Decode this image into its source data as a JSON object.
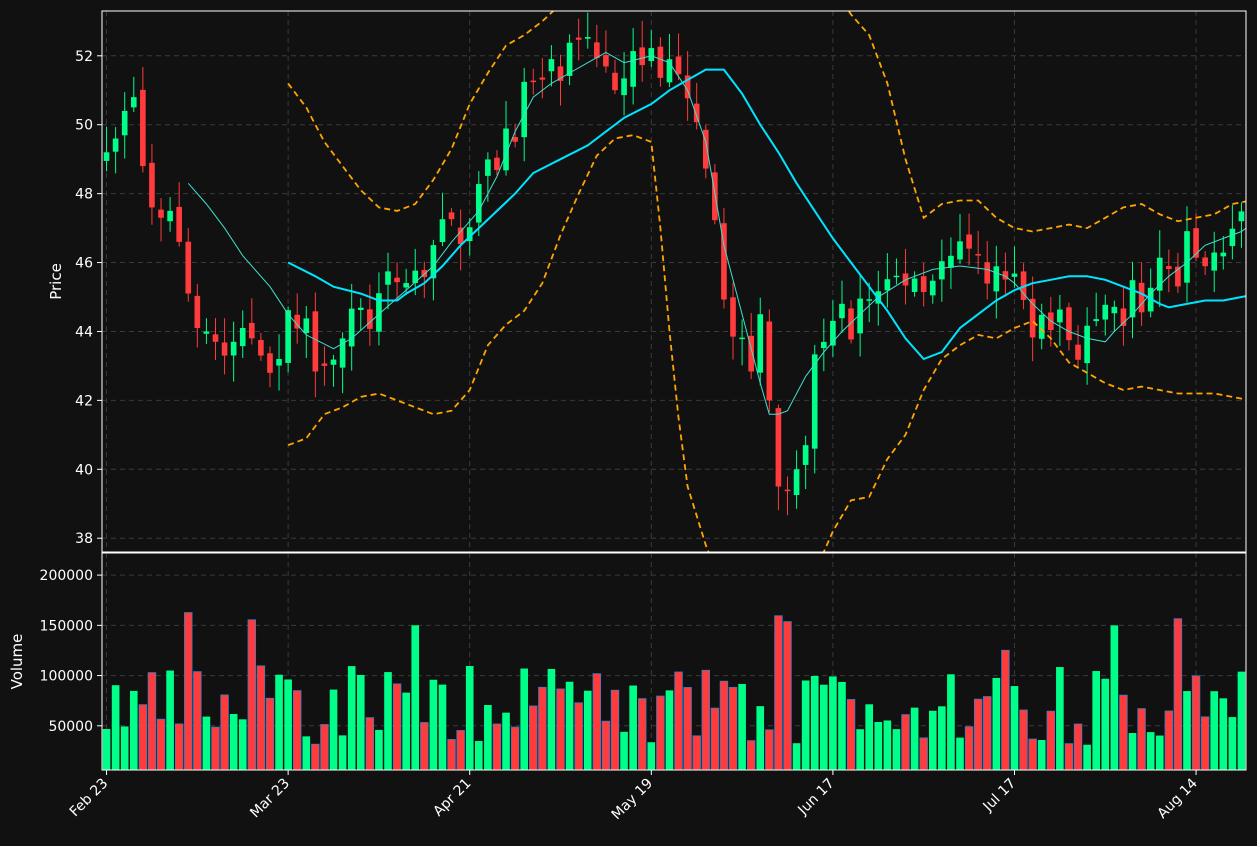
{
  "colors": {
    "background": "#111111",
    "up": "#00ff88",
    "down": "#ff3b3b",
    "down_edge": "#3c7cc4",
    "grid": "#3a3a3a",
    "axis": "#ffffff",
    "ma_short": "#40e0d0",
    "ma_long": "#00e5ff",
    "bollinger": "#ffa500"
  },
  "chart_data": {
    "type": "candlestick",
    "price_axis": {
      "label": "Price",
      "ylim": [
        37.6,
        53.3
      ],
      "ticks": [
        38,
        40,
        42,
        44,
        46,
        48,
        50,
        52
      ],
      "grid": true
    },
    "volume_axis": {
      "label": "Volume",
      "ylim": [
        6000,
        222000
      ],
      "ticks": [
        50000,
        100000,
        150000,
        200000
      ],
      "grid": true
    },
    "x_axis": {
      "tick_labels": [
        "Feb 23",
        "Mar 23",
        "Apr 21",
        "May 19",
        "Jun 17",
        "Jul 17",
        "Aug 14"
      ],
      "tick_index": [
        0,
        20,
        40,
        60,
        80,
        100,
        120
      ],
      "bar_count": 126
    },
    "overlays": [
      {
        "type": "moving_average",
        "style": "thin",
        "color": "cyan-green",
        "knots": [
          [
            9,
            48.3
          ],
          [
            11,
            47.7
          ],
          [
            13,
            47.0
          ],
          [
            14,
            46.6
          ],
          [
            15,
            46.2
          ],
          [
            18,
            45.3
          ],
          [
            20,
            44.5
          ],
          [
            22,
            43.9
          ],
          [
            25,
            43.5
          ],
          [
            27,
            43.8
          ],
          [
            30,
            44.5
          ],
          [
            33,
            45.2
          ],
          [
            36,
            45.9
          ],
          [
            38,
            46.6
          ],
          [
            41,
            47.5
          ],
          [
            43,
            48.5
          ],
          [
            45,
            49.8
          ],
          [
            47,
            50.8
          ],
          [
            49,
            51.2
          ],
          [
            51,
            51.5
          ],
          [
            53,
            51.8
          ],
          [
            55,
            52.1
          ],
          [
            57,
            51.8
          ],
          [
            60,
            52.0
          ],
          [
            62,
            51.8
          ],
          [
            64,
            51.0
          ],
          [
            66,
            49.5
          ],
          [
            67,
            48.0
          ],
          [
            68,
            46.5
          ],
          [
            69,
            45.5
          ],
          [
            70,
            44.5
          ],
          [
            72,
            42.5
          ],
          [
            73,
            41.6
          ],
          [
            74,
            41.6
          ],
          [
            75,
            41.7
          ],
          [
            77,
            42.7
          ],
          [
            79,
            43.4
          ],
          [
            81,
            44.0
          ],
          [
            83,
            44.5
          ],
          [
            85,
            45.0
          ],
          [
            88,
            45.5
          ],
          [
            91,
            45.8
          ],
          [
            94,
            45.9
          ],
          [
            97,
            45.8
          ],
          [
            99,
            45.6
          ],
          [
            100,
            45.4
          ],
          [
            102,
            44.8
          ],
          [
            104,
            44.3
          ],
          [
            106,
            44.0
          ],
          [
            108,
            43.8
          ],
          [
            110,
            43.7
          ],
          [
            111,
            44.0
          ],
          [
            113,
            44.5
          ],
          [
            115,
            45.1
          ],
          [
            117,
            45.6
          ],
          [
            119,
            46.0
          ],
          [
            121,
            46.5
          ],
          [
            123,
            46.7
          ],
          [
            125,
            46.9
          ],
          [
            127,
            47.3
          ],
          [
            129,
            47.6
          ],
          [
            131,
            47.7
          ],
          [
            133,
            47.7
          ],
          [
            135,
            47.9
          ],
          [
            137,
            48.0
          ],
          [
            139,
            47.9
          ],
          [
            141,
            47.7
          ]
        ]
      },
      {
        "type": "moving_average",
        "style": "thick",
        "color": "cyan",
        "knots": [
          [
            20,
            46.0
          ],
          [
            23,
            45.6
          ],
          [
            25,
            45.3
          ],
          [
            28,
            45.1
          ],
          [
            30,
            44.9
          ],
          [
            32,
            44.9
          ],
          [
            33,
            45.1
          ],
          [
            35,
            45.4
          ],
          [
            37,
            45.9
          ],
          [
            39,
            46.5
          ],
          [
            41,
            47.0
          ],
          [
            43,
            47.5
          ],
          [
            45,
            48.0
          ],
          [
            47,
            48.6
          ],
          [
            50,
            49.0
          ],
          [
            53,
            49.4
          ],
          [
            55,
            49.8
          ],
          [
            57,
            50.2
          ],
          [
            60,
            50.6
          ],
          [
            62,
            51.0
          ],
          [
            64,
            51.3
          ],
          [
            66,
            51.6
          ],
          [
            68,
            51.6
          ],
          [
            70,
            50.9
          ],
          [
            72,
            50.0
          ],
          [
            74,
            49.2
          ],
          [
            76,
            48.3
          ],
          [
            78,
            47.5
          ],
          [
            80,
            46.7
          ],
          [
            82,
            46.0
          ],
          [
            84,
            45.3
          ],
          [
            86,
            44.6
          ],
          [
            88,
            43.8
          ],
          [
            90,
            43.2
          ],
          [
            92,
            43.4
          ],
          [
            94,
            44.1
          ],
          [
            96,
            44.5
          ],
          [
            98,
            44.9
          ],
          [
            100,
            45.2
          ],
          [
            102,
            45.4
          ],
          [
            104,
            45.5
          ],
          [
            106,
            45.6
          ],
          [
            108,
            45.6
          ],
          [
            110,
            45.5
          ],
          [
            112,
            45.3
          ],
          [
            114,
            45.1
          ],
          [
            116,
            44.8
          ],
          [
            117,
            44.7
          ],
          [
            119,
            44.8
          ],
          [
            121,
            44.9
          ],
          [
            123,
            44.9
          ],
          [
            125,
            45.0
          ],
          [
            127,
            45.1
          ],
          [
            129,
            45.2
          ],
          [
            131,
            45.5
          ],
          [
            133,
            45.9
          ],
          [
            135,
            46.3
          ],
          [
            137,
            46.7
          ],
          [
            139,
            47.1
          ],
          [
            141,
            47.3
          ],
          [
            143,
            47.5
          ],
          [
            145,
            47.6
          ],
          [
            147,
            47.7
          ]
        ]
      },
      {
        "type": "bollinger_upper",
        "style": "dashed",
        "color": "orange",
        "knots": [
          [
            20,
            51.2
          ],
          [
            22,
            50.5
          ],
          [
            24,
            49.5
          ],
          [
            26,
            48.8
          ],
          [
            28,
            48.1
          ],
          [
            30,
            47.6
          ],
          [
            32,
            47.5
          ],
          [
            34,
            47.7
          ],
          [
            36,
            48.4
          ],
          [
            38,
            49.3
          ],
          [
            40,
            50.6
          ],
          [
            42,
            51.5
          ],
          [
            44,
            52.3
          ],
          [
            46,
            52.6
          ],
          [
            48,
            53.0
          ],
          [
            50,
            53.5
          ],
          [
            52,
            54.2
          ],
          [
            54,
            54.8
          ],
          [
            56,
            54.7
          ],
          [
            58,
            54.6
          ],
          [
            60,
            54.5
          ],
          [
            62,
            54.4
          ],
          [
            64,
            54.5
          ],
          [
            66,
            54.6
          ],
          [
            68,
            54.8
          ],
          [
            70,
            54.9
          ],
          [
            72,
            55.0
          ],
          [
            74,
            54.8
          ],
          [
            76,
            54.6
          ],
          [
            78,
            54.4
          ],
          [
            80,
            54.0
          ],
          [
            82,
            53.2
          ],
          [
            84,
            52.6
          ],
          [
            86,
            51.2
          ],
          [
            88,
            49.0
          ],
          [
            90,
            47.3
          ],
          [
            92,
            47.7
          ],
          [
            94,
            47.8
          ],
          [
            96,
            47.8
          ],
          [
            98,
            47.3
          ],
          [
            100,
            47.0
          ],
          [
            102,
            46.9
          ],
          [
            104,
            47.0
          ],
          [
            106,
            47.1
          ],
          [
            108,
            47.0
          ],
          [
            110,
            47.3
          ],
          [
            112,
            47.6
          ],
          [
            114,
            47.7
          ],
          [
            116,
            47.4
          ],
          [
            118,
            47.2
          ],
          [
            120,
            47.3
          ],
          [
            122,
            47.4
          ],
          [
            124,
            47.7
          ],
          [
            126,
            47.8
          ],
          [
            128,
            48.1
          ],
          [
            130,
            48.5
          ],
          [
            132,
            48.8
          ],
          [
            134,
            49.0
          ],
          [
            136,
            49.2
          ],
          [
            138,
            49.1
          ],
          [
            140,
            48.8
          ],
          [
            142,
            48.7
          ],
          [
            144,
            49.0
          ],
          [
            146,
            49.1
          ],
          [
            148,
            49.1
          ],
          [
            150,
            48.8
          ]
        ]
      },
      {
        "type": "bollinger_lower",
        "style": "dashed",
        "color": "orange",
        "knots": [
          [
            20,
            40.7
          ],
          [
            22,
            40.9
          ],
          [
            24,
            41.6
          ],
          [
            26,
            41.8
          ],
          [
            28,
            42.1
          ],
          [
            30,
            42.2
          ],
          [
            32,
            42.0
          ],
          [
            34,
            41.8
          ],
          [
            36,
            41.6
          ],
          [
            38,
            41.7
          ],
          [
            40,
            42.3
          ],
          [
            42,
            43.6
          ],
          [
            44,
            44.2
          ],
          [
            46,
            44.6
          ],
          [
            48,
            45.4
          ],
          [
            50,
            46.8
          ],
          [
            52,
            48.0
          ],
          [
            54,
            49.1
          ],
          [
            56,
            49.6
          ],
          [
            58,
            49.7
          ],
          [
            60,
            49.5
          ],
          [
            61,
            47.0
          ],
          [
            62,
            44.0
          ],
          [
            63,
            41.5
          ],
          [
            64,
            39.5
          ],
          [
            66,
            37.8
          ],
          [
            68,
            36.5
          ],
          [
            70,
            35.8
          ],
          [
            72,
            35.5
          ],
          [
            74,
            35.7
          ],
          [
            76,
            36.2
          ],
          [
            78,
            37.0
          ],
          [
            80,
            38.2
          ],
          [
            82,
            39.1
          ],
          [
            84,
            39.2
          ],
          [
            86,
            40.3
          ],
          [
            88,
            41.0
          ],
          [
            90,
            42.3
          ],
          [
            92,
            43.2
          ],
          [
            94,
            43.6
          ],
          [
            96,
            43.9
          ],
          [
            98,
            43.8
          ],
          [
            100,
            44.1
          ],
          [
            102,
            44.3
          ],
          [
            104,
            43.8
          ],
          [
            106,
            43.1
          ],
          [
            108,
            42.8
          ],
          [
            110,
            42.5
          ],
          [
            112,
            42.3
          ],
          [
            114,
            42.4
          ],
          [
            116,
            42.3
          ],
          [
            118,
            42.2
          ],
          [
            120,
            42.2
          ],
          [
            122,
            42.2
          ],
          [
            124,
            42.1
          ],
          [
            126,
            42.0
          ],
          [
            128,
            41.9
          ],
          [
            130,
            42.0
          ],
          [
            132,
            42.6
          ],
          [
            134,
            43.2
          ],
          [
            136,
            44.0
          ],
          [
            138,
            44.7
          ],
          [
            140,
            45.4
          ],
          [
            142,
            45.6
          ],
          [
            144,
            45.7
          ],
          [
            146,
            46.0
          ],
          [
            148,
            46.2
          ],
          [
            150,
            46.8
          ]
        ]
      }
    ]
  }
}
